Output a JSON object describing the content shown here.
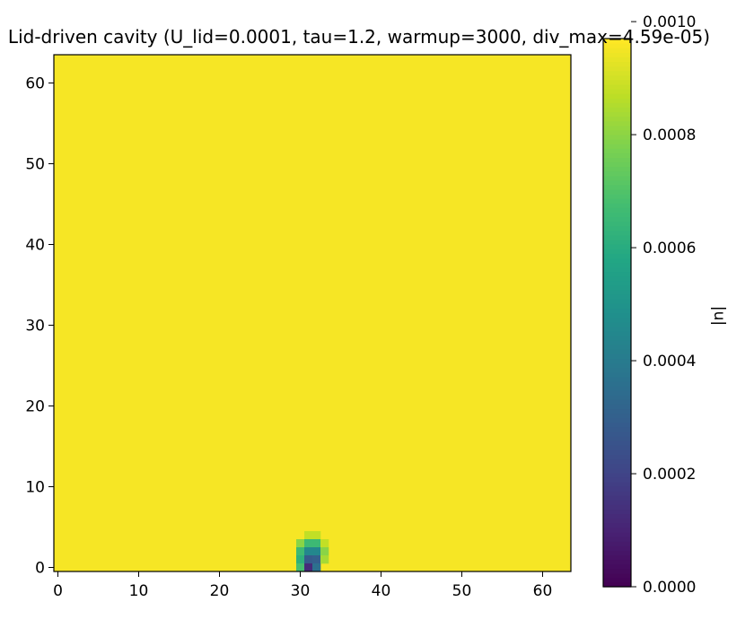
{
  "chart_data": {
    "type": "heatmap",
    "title": "Lid-driven cavity (U_lid=0.0001, tau=1.2, warmup=3000, div_max=4.59e-05)",
    "xlabel": "",
    "ylabel": "",
    "xlim": [
      -0.5,
      63.5
    ],
    "ylim": [
      -0.5,
      63.5
    ],
    "grid": false,
    "x_ticks": [
      0,
      10,
      20,
      30,
      40,
      50,
      60
    ],
    "y_ticks": [
      0,
      10,
      20,
      30,
      40,
      50,
      60
    ],
    "x_tick_labels": [
      "0",
      "10",
      "20",
      "30",
      "40",
      "50",
      "60"
    ],
    "y_tick_labels": [
      "0",
      "10",
      "20",
      "30",
      "40",
      "50",
      "60"
    ],
    "grid_size": [
      64,
      64
    ],
    "background_value": 0.00096,
    "colormap": "viridis",
    "colorbar": {
      "label": "|u|",
      "vmin": 0.0,
      "vmax": 0.00097,
      "ticks": [
        0.0,
        0.0002,
        0.0004,
        0.0006,
        0.0008,
        0.001
      ],
      "tick_labels": [
        "0.0000",
        "0.0002",
        "0.0004",
        "0.0006",
        "0.0008",
        "0.0010"
      ]
    },
    "anomaly_cells": [
      {
        "x": 31,
        "y": 4,
        "value": 0.00088
      },
      {
        "x": 32,
        "y": 4,
        "value": 0.00088
      },
      {
        "x": 30,
        "y": 3,
        "value": 0.0008
      },
      {
        "x": 31,
        "y": 3,
        "value": 0.00066
      },
      {
        "x": 32,
        "y": 3,
        "value": 0.00066
      },
      {
        "x": 33,
        "y": 3,
        "value": 0.00088
      },
      {
        "x": 30,
        "y": 2,
        "value": 0.00066
      },
      {
        "x": 31,
        "y": 2,
        "value": 0.00045
      },
      {
        "x": 32,
        "y": 2,
        "value": 0.00045
      },
      {
        "x": 33,
        "y": 2,
        "value": 0.0008
      },
      {
        "x": 30,
        "y": 1,
        "value": 0.00062
      },
      {
        "x": 31,
        "y": 1,
        "value": 0.00028
      },
      {
        "x": 32,
        "y": 1,
        "value": 0.0003
      },
      {
        "x": 33,
        "y": 1,
        "value": 0.00084
      },
      {
        "x": 30,
        "y": 0,
        "value": 0.00068
      },
      {
        "x": 31,
        "y": 0,
        "value": 0.00012
      },
      {
        "x": 32,
        "y": 0,
        "value": 0.00036
      }
    ]
  }
}
